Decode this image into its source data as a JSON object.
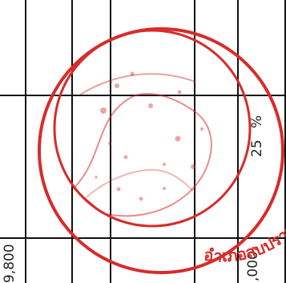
{
  "document": {
    "values": {
      "left_bottom": "9,800",
      "percent": "25",
      "percent_sign": "%",
      "right_bottom": ",000"
    }
  },
  "stamp": {
    "color": "#d82b2b",
    "text": "อำเภอสบปราบ จังหวัดลำปาง"
  },
  "colors": {
    "grid": "#111111",
    "text": "#222222"
  }
}
